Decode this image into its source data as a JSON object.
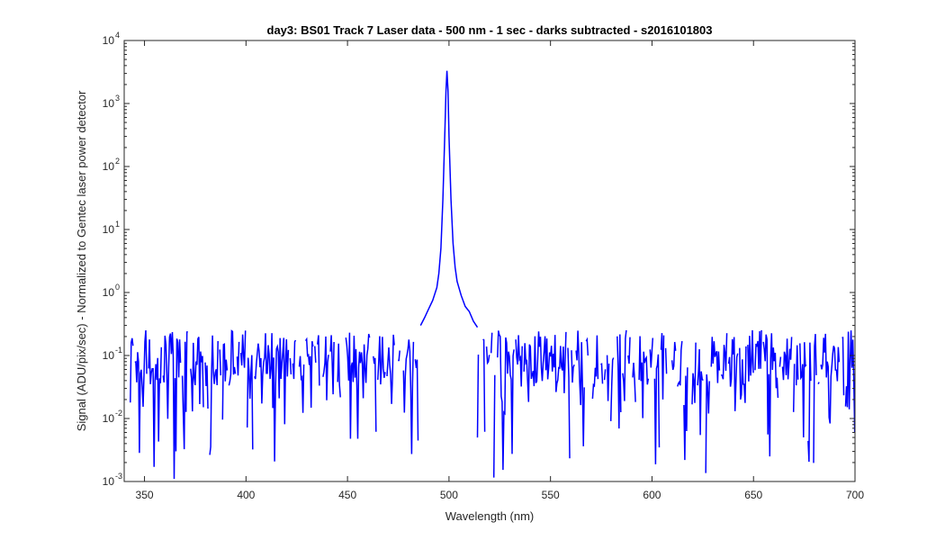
{
  "chart_data": {
    "type": "line",
    "title": "day3: BS01  Track 7 Laser data - 500 nm - 1 sec - darks subtracted - s2016101803",
    "xlabel": "Wavelength (nm)",
    "ylabel": "Signal (ADU/pix/sec) - Normalized to Gentec laser power detector",
    "xlim": [
      340,
      700
    ],
    "ylim": [
      0.001,
      10000
    ],
    "yscale": "log",
    "x_ticks": [
      350,
      400,
      450,
      500,
      550,
      600,
      650,
      700
    ],
    "y_ticks": [
      {
        "base": "10",
        "exp": "-3",
        "value": 0.001
      },
      {
        "base": "10",
        "exp": "-2",
        "value": 0.01
      },
      {
        "base": "10",
        "exp": "-1",
        "value": 0.1
      },
      {
        "base": "10",
        "exp": "0",
        "value": 1
      },
      {
        "base": "10",
        "exp": "1",
        "value": 10
      },
      {
        "base": "10",
        "exp": "2",
        "value": 100
      },
      {
        "base": "10",
        "exp": "3",
        "value": 1000
      },
      {
        "base": "10",
        "exp": "4",
        "value": 10000
      }
    ],
    "grid": false,
    "series": [
      {
        "color": "#0000ff",
        "peak_points": [
          [
            486,
            0.3
          ],
          [
            488,
            0.4
          ],
          [
            490,
            0.55
          ],
          [
            492,
            0.75
          ],
          [
            494,
            1.2
          ],
          [
            495,
            2.0
          ],
          [
            496,
            5.0
          ],
          [
            497,
            30
          ],
          [
            498,
            400
          ],
          [
            498.5,
            1500
          ],
          [
            499,
            3300
          ],
          [
            499.5,
            1600
          ],
          [
            500,
            300
          ],
          [
            501,
            30
          ],
          [
            502,
            6
          ],
          [
            503,
            2.5
          ],
          [
            504,
            1.5
          ],
          [
            506,
            0.9
          ],
          [
            508,
            0.6
          ],
          [
            510,
            0.5
          ],
          [
            512,
            0.35
          ],
          [
            514,
            0.28
          ]
        ],
        "noise_range_low": [
          343,
          486
        ],
        "noise_range_high": [
          514,
          700
        ],
        "noise_level": 0.1
      }
    ]
  }
}
